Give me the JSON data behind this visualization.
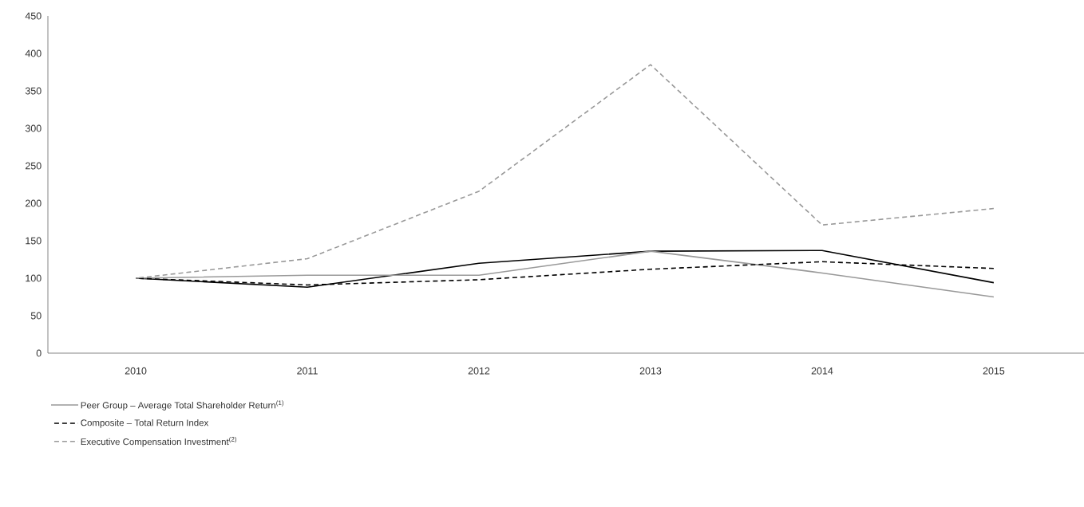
{
  "chart_data": {
    "type": "line",
    "categories": [
      "2010",
      "2011",
      "2012",
      "2013",
      "2014",
      "2015"
    ],
    "series": [
      {
        "color": "#000000",
        "line_style": "solid",
        "values": [
          100,
          88,
          120,
          136,
          137,
          94
        ]
      },
      {
        "name": "Peer Group – Average Total Shareholder Return$^{(1)}$",
        "color": "#999999",
        "line_style": "solid",
        "values": [
          100,
          104,
          104,
          136,
          107,
          75
        ]
      },
      {
        "name": "Composite – Total Return Index",
        "color": "#000000",
        "line_style": "dashed",
        "values": [
          100,
          91,
          98,
          112,
          122,
          113
        ]
      },
      {
        "name": "Executive Compensation Investment$^{(2)}$",
        "color": "#999999",
        "line_style": "dashed",
        "values": [
          100,
          126,
          216,
          385,
          171,
          193
        ]
      }
    ],
    "ylim": [
      0,
      450
    ],
    "yticks": [
      0,
      50,
      100,
      150,
      200,
      250,
      300,
      350,
      400,
      450
    ],
    "grid": false,
    "legend": "bottom",
    "marker": "none"
  }
}
